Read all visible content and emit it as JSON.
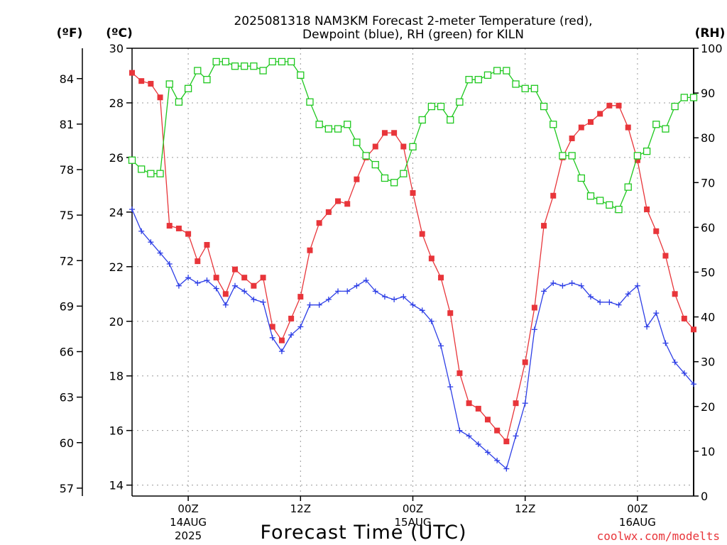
{
  "chart_data": {
    "type": "line",
    "title": "2025081318 NAM3KM Forecast 2-meter Temperature (red),",
    "subtitle": "Dewpoint (blue), RH (green) for KILN",
    "xlabel": "Forecast Time (UTC)",
    "left_outer_axis_label": "(ºF)",
    "left_axis_label": "(ºC)",
    "right_axis_label": "(RH)",
    "credit": "coolwx.com/modelts",
    "x_range_hours": [
      18,
      78
    ],
    "x_ticks": [
      {
        "hour": 24,
        "label": "00Z",
        "sub1": "14AUG",
        "sub2": "2025"
      },
      {
        "hour": 36,
        "label": "12Z",
        "sub1": "",
        "sub2": ""
      },
      {
        "hour": 48,
        "label": "00Z",
        "sub1": "15AUG",
        "sub2": ""
      },
      {
        "hour": 60,
        "label": "12Z",
        "sub1": "",
        "sub2": ""
      },
      {
        "hour": 72,
        "label": "00Z",
        "sub1": "16AUG",
        "sub2": ""
      }
    ],
    "celsius_range": [
      13.6,
      30
    ],
    "celsius_ticks": [
      "14",
      "16",
      "18",
      "20",
      "22",
      "24",
      "26",
      "28",
      "30"
    ],
    "fahrenheit_ticks": [
      "57",
      "60",
      "63",
      "66",
      "69",
      "72",
      "75",
      "78",
      "81",
      "84"
    ],
    "rh_range": [
      0,
      100
    ],
    "rh_ticks": [
      "0",
      "10",
      "20",
      "30",
      "40",
      "50",
      "60",
      "70",
      "80",
      "90",
      "100"
    ],
    "grid": true,
    "series": [
      {
        "name": "2-meter Temperature",
        "unit": "C",
        "color": "#e8353a",
        "marker": "filled-square",
        "x": [
          18,
          19,
          20,
          21,
          22,
          23,
          24,
          25,
          26,
          27,
          28,
          29,
          30,
          31,
          32,
          33,
          34,
          35,
          36,
          37,
          38,
          39,
          40,
          41,
          42,
          43,
          44,
          45,
          46,
          47,
          48,
          49,
          50,
          51,
          52,
          53,
          54,
          55,
          56,
          57,
          58,
          59,
          60,
          61,
          62,
          63,
          64,
          65,
          66,
          67,
          68,
          69,
          70,
          71,
          72,
          73,
          74,
          75,
          76,
          77,
          78
        ],
        "y": [
          29.1,
          28.8,
          28.7,
          28.2,
          23.5,
          23.4,
          23.2,
          22.2,
          22.8,
          21.6,
          21.0,
          21.9,
          21.6,
          21.3,
          21.6,
          19.8,
          19.3,
          20.1,
          20.9,
          22.6,
          23.6,
          24.0,
          24.4,
          24.3,
          25.2,
          26.0,
          26.4,
          26.9,
          26.9,
          26.4,
          24.7,
          23.2,
          22.3,
          21.6,
          20.3,
          18.1,
          17.0,
          16.8,
          16.4,
          16.0,
          15.6,
          17.0,
          18.5,
          20.5,
          23.5,
          24.6,
          26.0,
          26.7,
          27.1,
          27.3,
          27.6,
          27.9,
          27.9,
          27.1,
          25.9,
          24.1,
          23.3,
          22.4,
          21.0,
          20.1,
          19.7
        ]
      },
      {
        "name": "Dewpoint",
        "unit": "C",
        "color": "#2d3ee6",
        "marker": "plus",
        "x": [
          18,
          19,
          20,
          21,
          22,
          23,
          24,
          25,
          26,
          27,
          28,
          29,
          30,
          31,
          32,
          33,
          34,
          35,
          36,
          37,
          38,
          39,
          40,
          41,
          42,
          43,
          44,
          45,
          46,
          47,
          48,
          49,
          50,
          51,
          52,
          53,
          54,
          55,
          56,
          57,
          58,
          59,
          60,
          61,
          62,
          63,
          64,
          65,
          66,
          67,
          68,
          69,
          70,
          71,
          72,
          73,
          74,
          75,
          76,
          77,
          78
        ],
        "y": [
          24.1,
          23.3,
          22.9,
          22.5,
          22.1,
          21.3,
          21.6,
          21.4,
          21.5,
          21.2,
          20.6,
          21.3,
          21.1,
          20.8,
          20.7,
          19.4,
          18.9,
          19.5,
          19.8,
          20.6,
          20.6,
          20.8,
          21.1,
          21.1,
          21.3,
          21.5,
          21.1,
          20.9,
          20.8,
          20.9,
          20.6,
          20.4,
          20.0,
          19.1,
          17.6,
          16.0,
          15.8,
          15.5,
          15.2,
          14.9,
          14.6,
          15.8,
          17.0,
          19.7,
          21.1,
          21.4,
          21.3,
          21.4,
          21.3,
          20.9,
          20.7,
          20.7,
          20.6,
          21.0,
          21.3,
          19.8,
          20.3,
          19.2,
          18.5,
          18.1,
          17.7
        ]
      },
      {
        "name": "RH",
        "unit": "%",
        "color": "#1ec81e",
        "marker": "open-square",
        "x": [
          18,
          19,
          20,
          21,
          22,
          23,
          24,
          25,
          26,
          27,
          28,
          29,
          30,
          31,
          32,
          33,
          34,
          35,
          36,
          37,
          38,
          39,
          40,
          41,
          42,
          43,
          44,
          45,
          46,
          47,
          48,
          49,
          50,
          51,
          52,
          53,
          54,
          55,
          56,
          57,
          58,
          59,
          60,
          61,
          62,
          63,
          64,
          65,
          66,
          67,
          68,
          69,
          70,
          71,
          72,
          73,
          74,
          75,
          76,
          77,
          78
        ],
        "y": [
          75,
          73,
          72,
          72,
          92,
          88,
          91,
          95,
          93,
          97,
          97,
          96,
          96,
          96,
          95,
          97,
          97,
          97,
          94,
          88,
          83,
          82,
          82,
          83,
          79,
          76,
          74,
          71,
          70,
          72,
          78,
          84,
          87,
          87,
          84,
          88,
          93,
          93,
          94,
          95,
          95,
          92,
          91,
          91,
          87,
          83,
          76,
          76,
          71,
          67,
          66,
          65,
          64,
          69,
          76,
          77,
          83,
          82,
          87,
          89,
          89
        ]
      }
    ]
  }
}
